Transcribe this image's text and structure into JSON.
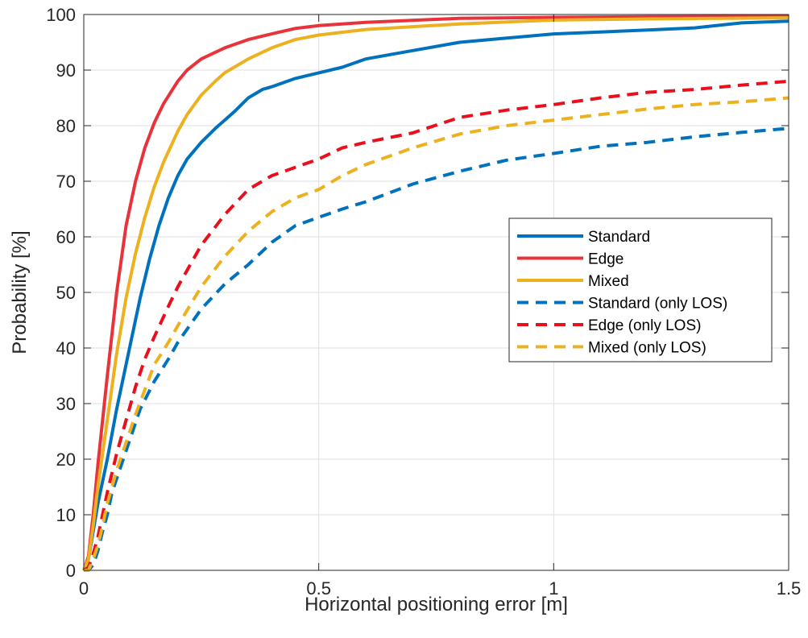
{
  "chart_data": {
    "type": "line",
    "title": "",
    "xlabel": "Horizontal positioning error [m]",
    "ylabel": "Probability [%]",
    "xlim": [
      0,
      1.5
    ],
    "ylim": [
      0,
      100
    ],
    "x_ticks": [
      0,
      0.5,
      1,
      1.5
    ],
    "x_tick_labels": [
      "0",
      "0.5",
      "1",
      "1.5"
    ],
    "y_ticks": [
      0,
      10,
      20,
      30,
      40,
      50,
      60,
      70,
      80,
      90,
      100
    ],
    "y_tick_labels": [
      "0",
      "10",
      "20",
      "30",
      "40",
      "50",
      "60",
      "70",
      "80",
      "90",
      "100"
    ],
    "grid": true,
    "legend_position": "center-right",
    "series": [
      {
        "name": "Standard",
        "color": "#0072BD",
        "style": "solid",
        "x": [
          0,
          0.01,
          0.02,
          0.03,
          0.05,
          0.07,
          0.1,
          0.12,
          0.14,
          0.16,
          0.18,
          0.2,
          0.22,
          0.25,
          0.28,
          0.3,
          0.32,
          0.35,
          0.38,
          0.4,
          0.45,
          0.5,
          0.55,
          0.6,
          0.7,
          0.8,
          1.0,
          1.2,
          1.3,
          1.4,
          1.5
        ],
        "y": [
          0,
          2,
          7,
          12,
          20,
          29,
          41,
          49,
          56,
          62,
          67,
          71,
          74,
          77,
          79.5,
          81,
          82.5,
          85,
          86.5,
          87,
          88.5,
          89.5,
          90.5,
          92,
          93.5,
          95,
          96.5,
          97.2,
          97.6,
          98.5,
          98.8
        ]
      },
      {
        "name": "Edge",
        "color": "#E8333A",
        "style": "solid",
        "x": [
          0,
          0.01,
          0.02,
          0.03,
          0.05,
          0.07,
          0.09,
          0.11,
          0.13,
          0.15,
          0.17,
          0.2,
          0.22,
          0.25,
          0.28,
          0.3,
          0.35,
          0.4,
          0.45,
          0.5,
          0.6,
          0.8,
          1.0,
          1.2,
          1.5
        ],
        "y": [
          0,
          2.5,
          10,
          19,
          35,
          50,
          62,
          70,
          76,
          80.5,
          84,
          88,
          90,
          92,
          93.2,
          94,
          95.5,
          96.5,
          97.5,
          98,
          98.6,
          99.3,
          99.5,
          99.6,
          99.7
        ]
      },
      {
        "name": "Mixed",
        "color": "#EDB120",
        "style": "solid",
        "x": [
          0,
          0.01,
          0.02,
          0.03,
          0.05,
          0.07,
          0.09,
          0.11,
          0.13,
          0.15,
          0.17,
          0.2,
          0.22,
          0.25,
          0.28,
          0.3,
          0.35,
          0.4,
          0.45,
          0.5,
          0.6,
          0.8,
          1.0,
          1.2,
          1.5
        ],
        "y": [
          0,
          2,
          8,
          15,
          27,
          39,
          49,
          57,
          63.5,
          69,
          73.5,
          79,
          82,
          85.5,
          88,
          89.5,
          92,
          94,
          95.5,
          96.3,
          97.3,
          98.3,
          99,
          99.2,
          99.4
        ]
      },
      {
        "name": "Standard (only LOS)",
        "color": "#0072BD",
        "style": "dashed",
        "x": [
          0,
          0.01,
          0.02,
          0.03,
          0.04,
          0.05,
          0.06,
          0.08,
          0.1,
          0.12,
          0.15,
          0.18,
          0.2,
          0.25,
          0.3,
          0.35,
          0.4,
          0.45,
          0.5,
          0.55,
          0.6,
          0.7,
          0.8,
          0.9,
          1.0,
          1.1,
          1.2,
          1.3,
          1.4,
          1.5
        ],
        "y": [
          0,
          0,
          1,
          3.5,
          7,
          10,
          14,
          19,
          24,
          29,
          34,
          38,
          41,
          47,
          51.5,
          55,
          59,
          62,
          63.5,
          65,
          66.3,
          69.5,
          71.8,
          73.8,
          75,
          76.3,
          77,
          78,
          78.8,
          79.5
        ]
      },
      {
        "name": "Edge (only LOS)",
        "color": "#E8101C",
        "style": "dashed",
        "x": [
          0,
          0.01,
          0.02,
          0.03,
          0.04,
          0.05,
          0.07,
          0.09,
          0.11,
          0.13,
          0.15,
          0.18,
          0.2,
          0.25,
          0.3,
          0.35,
          0.4,
          0.45,
          0.5,
          0.55,
          0.6,
          0.7,
          0.8,
          0.9,
          1.0,
          1.1,
          1.2,
          1.3,
          1.4,
          1.5
        ],
        "y": [
          0,
          0.5,
          3,
          6,
          10,
          14,
          21,
          27,
          33,
          38,
          42,
          47.5,
          51,
          58.5,
          64,
          68.5,
          71,
          72.5,
          74,
          76,
          77,
          78.7,
          81.5,
          82.8,
          83.8,
          85,
          86,
          86.5,
          87.3,
          88
        ]
      },
      {
        "name": "Mixed (only LOS)",
        "color": "#EDB120",
        "style": "dashed",
        "x": [
          0,
          0.01,
          0.02,
          0.03,
          0.04,
          0.05,
          0.07,
          0.09,
          0.11,
          0.13,
          0.15,
          0.18,
          0.2,
          0.25,
          0.3,
          0.35,
          0.4,
          0.45,
          0.5,
          0.55,
          0.6,
          0.7,
          0.8,
          0.9,
          1.0,
          1.1,
          1.2,
          1.3,
          1.4,
          1.5
        ],
        "y": [
          0,
          0,
          2,
          4.5,
          8,
          12,
          18,
          23,
          28,
          32.5,
          37,
          41,
          44,
          51,
          56.5,
          61,
          64.5,
          67,
          68.5,
          71,
          73,
          76,
          78.5,
          80,
          81,
          82,
          83,
          83.8,
          84.3,
          85
        ]
      }
    ]
  }
}
